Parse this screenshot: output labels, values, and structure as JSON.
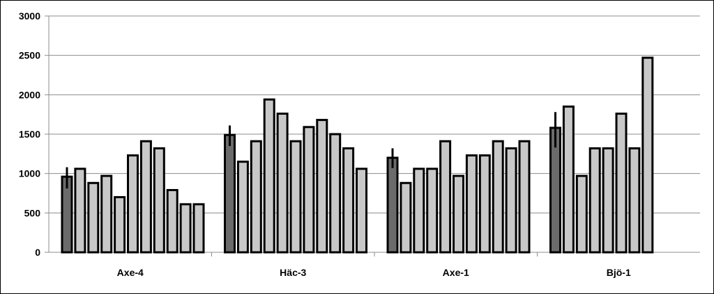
{
  "chart_data": {
    "type": "bar",
    "title": "",
    "xlabel": "",
    "ylabel": "",
    "ylim": [
      0,
      3000
    ],
    "yticks": [
      0,
      500,
      1000,
      1500,
      2000,
      2500,
      3000
    ],
    "grid": true,
    "legend": "none",
    "colors": {
      "first_bar": "#6b6b6b",
      "other_bars": "#c8c8c8",
      "outline": "#000000",
      "gridline": "#8c8c8c"
    },
    "groups": [
      {
        "category": "Axe-4",
        "values": [
          960,
          1060,
          880,
          970,
          700,
          1230,
          1410,
          1320,
          790,
          610,
          610
        ],
        "error_first": [
          810,
          1080
        ]
      },
      {
        "category": "Häc-3",
        "values": [
          1490,
          1150,
          1410,
          1940,
          1760,
          1410,
          1590,
          1680,
          1500,
          1320,
          1060
        ],
        "error_first": [
          1350,
          1610
        ]
      },
      {
        "category": "Axe-1",
        "values": [
          1200,
          880,
          1060,
          1060,
          1410,
          970,
          1230,
          1230,
          1410,
          1320,
          1410
        ],
        "error_first": [
          1070,
          1320
        ]
      },
      {
        "category": "Bjö-1",
        "values": [
          1580,
          1850,
          970,
          1320,
          1320,
          1760,
          1320,
          2470
        ],
        "error_first": [
          1330,
          1780
        ]
      }
    ]
  }
}
